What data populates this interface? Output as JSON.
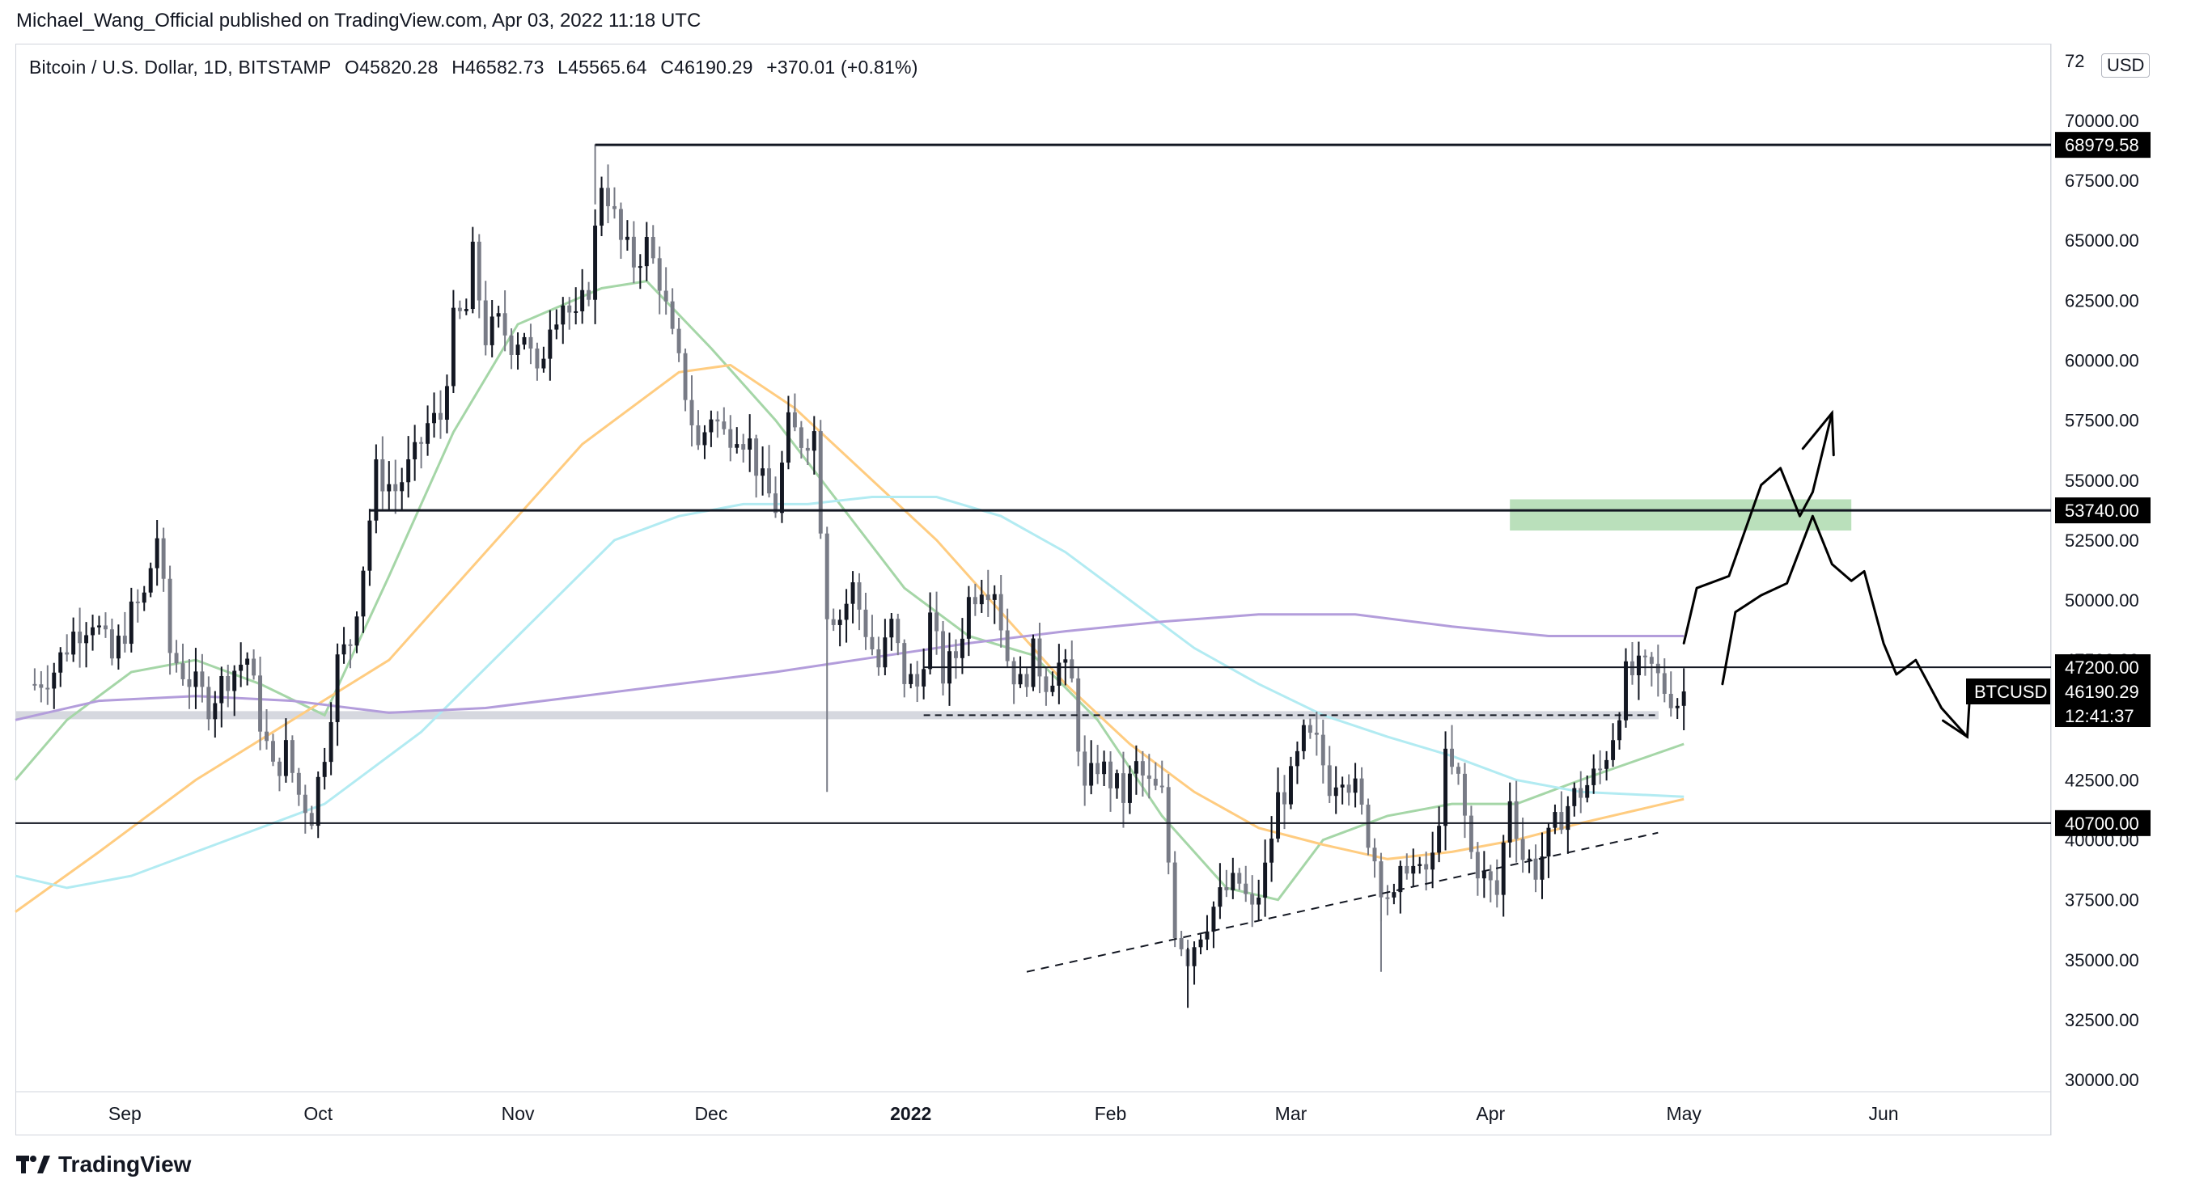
{
  "header": {
    "published": "Michael_Wang_Official published on TradingView.com, Apr 03, 2022 11:18 UTC",
    "symbol": "Bitcoin / U.S. Dollar, 1D, BITSTAMP",
    "open": "O45820.28",
    "high": "H46582.73",
    "low": "L45565.64",
    "close": "C46190.29",
    "change": "+370.01 (+0.81%)",
    "currency": "USD"
  },
  "brand": {
    "name": "TradingView",
    "logo_icon": "tradingview-logo-icon"
  },
  "colors": {
    "up_candle": "#131722",
    "down_candle": "#787b86",
    "ma_green": "#a5d6a7",
    "ma_orange": "#ffcc80",
    "ma_cyan": "#b2ebf2",
    "ma_purple": "#b39ddb",
    "zone_green": "#81c784",
    "axis_text": "#131722"
  },
  "chart_data": {
    "type": "candlestick",
    "title": "Bitcoin / U.S. Dollar, 1D, BITSTAMP",
    "ylim": [
      29500,
      73200
    ],
    "y_ticks": [
      "70000.00",
      "67500.00",
      "65000.00",
      "62500.00",
      "60000.00",
      "57500.00",
      "55000.00",
      "52500.00",
      "50000.00",
      "47500.00",
      "45000.00",
      "42500.00",
      "40000.00",
      "37500.00",
      "35000.00",
      "32500.00",
      "30000.00"
    ],
    "y_top_partial": "72",
    "x_labels": [
      {
        "label": "Sep",
        "day": 14
      },
      {
        "label": "Oct",
        "day": 44
      },
      {
        "label": "Nov",
        "day": 75
      },
      {
        "label": "Dec",
        "day": 105
      },
      {
        "label": "2022",
        "day": 136,
        "bold": true
      },
      {
        "label": "Feb",
        "day": 167
      },
      {
        "label": "Mar",
        "day": 195
      },
      {
        "label": "Apr",
        "day": 226
      },
      {
        "label": "May",
        "day": 256
      },
      {
        "label": "Jun",
        "day": 287
      }
    ],
    "x_range_days": [
      -3,
      313
    ],
    "levels": [
      {
        "price": 68979.58,
        "label": "68979.58",
        "from_day": 87
      },
      {
        "price": 53740.0,
        "label": "53740.00",
        "from_day": 52
      },
      {
        "price": 47200.0,
        "label": "47200.00",
        "from_day": 138
      },
      {
        "price": 40700.0,
        "label": "40700.00",
        "from_day": -3
      }
    ],
    "support_zone": {
      "price": 45200
    },
    "dashed_level": {
      "price": 45200,
      "from_day": 138,
      "to_day": 252
    },
    "trendline": {
      "from": [
        154,
        34500
      ],
      "to": [
        252,
        40300
      ]
    },
    "target_zone": {
      "from_day": 229,
      "to_day": 282,
      "low": 52900,
      "high": 54200
    },
    "last_price": {
      "symbol": "BTCUSD",
      "price": 46190.29,
      "label": "46190.29",
      "countdown": "12:41:37"
    },
    "candles_ohlc_anchor_days": [
      0,
      240
    ],
    "close_path": [
      [
        0,
        46500
      ],
      [
        3,
        47100
      ],
      [
        6,
        48600
      ],
      [
        9,
        49300
      ],
      [
        12,
        47500
      ],
      [
        15,
        49400
      ],
      [
        17,
        50100
      ],
      [
        19,
        52700
      ],
      [
        21,
        47800
      ],
      [
        24,
        46700
      ],
      [
        27,
        45700
      ],
      [
        30,
        46900
      ],
      [
        33,
        47600
      ],
      [
        35,
        45000
      ],
      [
        37,
        42800
      ],
      [
        39,
        43700
      ],
      [
        41,
        41900
      ],
      [
        43,
        41100
      ],
      [
        45,
        43800
      ],
      [
        47,
        47400
      ],
      [
        49,
        48300
      ],
      [
        51,
        51500
      ],
      [
        53,
        55300
      ],
      [
        56,
        54600
      ],
      [
        59,
        55900
      ],
      [
        61,
        57300
      ],
      [
        63,
        57600
      ],
      [
        65,
        61500
      ],
      [
        67,
        62100
      ],
      [
        68,
        64300
      ],
      [
        70,
        61000
      ],
      [
        72,
        61500
      ],
      [
        74,
        60800
      ],
      [
        76,
        61200
      ],
      [
        78,
        59100
      ],
      [
        80,
        61800
      ],
      [
        82,
        62500
      ],
      [
        84,
        61500
      ],
      [
        86,
        63100
      ],
      [
        88,
        67500
      ],
      [
        89,
        66900
      ],
      [
        91,
        64900
      ],
      [
        93,
        64100
      ],
      [
        95,
        64800
      ],
      [
        97,
        63400
      ],
      [
        99,
        60800
      ],
      [
        101,
        58700
      ],
      [
        103,
        56300
      ],
      [
        105,
        57800
      ],
      [
        107,
        56900
      ],
      [
        109,
        57200
      ],
      [
        111,
        56500
      ],
      [
        113,
        54800
      ],
      [
        115,
        53900
      ],
      [
        117,
        57200
      ],
      [
        119,
        56700
      ],
      [
        121,
        57000
      ],
      [
        123,
        49700
      ],
      [
        125,
        49300
      ],
      [
        127,
        50500
      ],
      [
        129,
        48800
      ],
      [
        131,
        47200
      ],
      [
        133,
        48900
      ],
      [
        135,
        46800
      ],
      [
        137,
        46400
      ],
      [
        139,
        49200
      ],
      [
        141,
        46900
      ],
      [
        143,
        47700
      ],
      [
        145,
        50000
      ],
      [
        147,
        50800
      ],
      [
        149,
        50600
      ],
      [
        151,
        47600
      ],
      [
        153,
        46400
      ],
      [
        155,
        47700
      ],
      [
        157,
        46700
      ],
      [
        159,
        47300
      ],
      [
        161,
        46500
      ],
      [
        163,
        41900
      ],
      [
        165,
        43200
      ],
      [
        167,
        42500
      ],
      [
        169,
        41800
      ],
      [
        171,
        43000
      ],
      [
        173,
        42200
      ],
      [
        175,
        41800
      ],
      [
        177,
        36400
      ],
      [
        179,
        35200
      ],
      [
        181,
        36300
      ],
      [
        183,
        37200
      ],
      [
        185,
        37900
      ],
      [
        187,
        38200
      ],
      [
        189,
        36900
      ],
      [
        191,
        38700
      ],
      [
        193,
        41700
      ],
      [
        195,
        42400
      ],
      [
        197,
        44200
      ],
      [
        199,
        43900
      ],
      [
        201,
        42400
      ],
      [
        203,
        43000
      ],
      [
        205,
        42000
      ],
      [
        207,
        40200
      ],
      [
        209,
        38300
      ],
      [
        211,
        37300
      ],
      [
        213,
        39200
      ],
      [
        215,
        38400
      ],
      [
        217,
        39100
      ],
      [
        219,
        43200
      ],
      [
        221,
        42400
      ],
      [
        223,
        39400
      ],
      [
        225,
        38400
      ],
      [
        227,
        37700
      ],
      [
        229,
        41900
      ],
      [
        231,
        39300
      ],
      [
        233,
        38800
      ],
      [
        235,
        39900
      ],
      [
        237,
        41100
      ],
      [
        239,
        41800
      ],
      [
        241,
        42300
      ],
      [
        243,
        42900
      ],
      [
        245,
        44500
      ],
      [
        247,
        46800
      ],
      [
        249,
        47000
      ],
      [
        251,
        47100
      ],
      [
        253,
        46300
      ],
      [
        255,
        45800
      ],
      [
        256,
        46190
      ]
    ],
    "moving_averages": [
      {
        "name": "MA-green",
        "color": "#a5d6a7",
        "points": [
          [
            -3,
            42500
          ],
          [
            5,
            45000
          ],
          [
            15,
            47000
          ],
          [
            25,
            47500
          ],
          [
            35,
            46500
          ],
          [
            45,
            45200
          ],
          [
            55,
            51000
          ],
          [
            65,
            57000
          ],
          [
            75,
            61500
          ],
          [
            88,
            63000
          ],
          [
            95,
            63300
          ],
          [
            105,
            60500
          ],
          [
            115,
            57500
          ],
          [
            125,
            54000
          ],
          [
            135,
            50500
          ],
          [
            145,
            48500
          ],
          [
            155,
            47700
          ],
          [
            165,
            45000
          ],
          [
            175,
            41000
          ],
          [
            185,
            38000
          ],
          [
            193,
            37500
          ],
          [
            200,
            40000
          ],
          [
            210,
            41000
          ],
          [
            220,
            41500
          ],
          [
            230,
            41500
          ],
          [
            240,
            42500
          ],
          [
            256,
            44000
          ]
        ]
      },
      {
        "name": "MA-orange",
        "color": "#ffcc80",
        "points": [
          [
            -3,
            37000
          ],
          [
            10,
            39500
          ],
          [
            25,
            42500
          ],
          [
            40,
            45000
          ],
          [
            55,
            47500
          ],
          [
            70,
            52000
          ],
          [
            85,
            56500
          ],
          [
            100,
            59500
          ],
          [
            108,
            59800
          ],
          [
            118,
            58000
          ],
          [
            128,
            55500
          ],
          [
            140,
            52500
          ],
          [
            150,
            49500
          ],
          [
            160,
            46500
          ],
          [
            170,
            44000
          ],
          [
            180,
            42000
          ],
          [
            190,
            40500
          ],
          [
            200,
            39800
          ],
          [
            210,
            39200
          ],
          [
            220,
            39500
          ],
          [
            230,
            40000
          ],
          [
            240,
            40700
          ],
          [
            256,
            41700
          ]
        ]
      },
      {
        "name": "MA-cyan",
        "color": "#b2ebf2",
        "points": [
          [
            -3,
            38500
          ],
          [
            5,
            38000
          ],
          [
            15,
            38500
          ],
          [
            30,
            40000
          ],
          [
            45,
            41500
          ],
          [
            60,
            44500
          ],
          [
            75,
            48500
          ],
          [
            90,
            52500
          ],
          [
            100,
            53500
          ],
          [
            110,
            54000
          ],
          [
            120,
            54000
          ],
          [
            130,
            54300
          ],
          [
            140,
            54300
          ],
          [
            150,
            53500
          ],
          [
            160,
            52000
          ],
          [
            170,
            50000
          ],
          [
            180,
            48000
          ],
          [
            190,
            46500
          ],
          [
            200,
            45200
          ],
          [
            210,
            44300
          ],
          [
            220,
            43500
          ],
          [
            230,
            42500
          ],
          [
            240,
            42000
          ],
          [
            256,
            41800
          ]
        ]
      },
      {
        "name": "MA-purple",
        "color": "#b39ddb",
        "points": [
          [
            -3,
            45000
          ],
          [
            10,
            45800
          ],
          [
            25,
            46000
          ],
          [
            40,
            45800
          ],
          [
            55,
            45300
          ],
          [
            70,
            45500
          ],
          [
            85,
            46000
          ],
          [
            100,
            46500
          ],
          [
            115,
            47000
          ],
          [
            130,
            47600
          ],
          [
            145,
            48200
          ],
          [
            160,
            48700
          ],
          [
            175,
            49100
          ],
          [
            190,
            49400
          ],
          [
            205,
            49400
          ],
          [
            220,
            48900
          ],
          [
            235,
            48500
          ],
          [
            256,
            48500
          ]
        ]
      }
    ],
    "forecast_path": {
      "name": "hand-drawn-projection",
      "up_branch": [
        [
          256,
          48200
        ],
        [
          258,
          50500
        ],
        [
          263,
          51000
        ],
        [
          268,
          54800
        ],
        [
          271,
          55500
        ],
        [
          274,
          53500
        ],
        [
          276,
          54500
        ],
        [
          279,
          57800
        ]
      ],
      "down_branch": [
        [
          262,
          46500
        ],
        [
          264,
          49500
        ],
        [
          268,
          50200
        ],
        [
          272,
          50700
        ],
        [
          276,
          53500
        ],
        [
          279,
          51500
        ],
        [
          282,
          50800
        ],
        [
          284,
          51200
        ],
        [
          287,
          48200
        ],
        [
          289,
          46900
        ],
        [
          292,
          47500
        ],
        [
          296,
          45500
        ],
        [
          300,
          44300
        ]
      ]
    }
  }
}
